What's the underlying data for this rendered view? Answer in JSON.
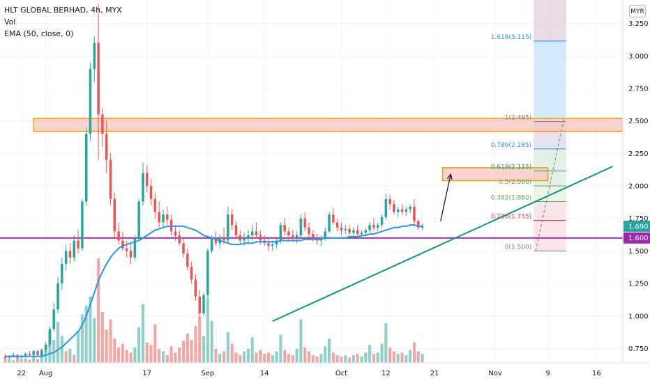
{
  "legend": {
    "title": "HLT GLOBAL BERHAD, 4h, MYX",
    "vol": "Vol",
    "ema": "EMA (50, close, 0)"
  },
  "currency": "MYR",
  "colors": {
    "up": "#26a69a",
    "down": "#ef5350",
    "vol_up": "#8fd0c9",
    "vol_down": "#f3a6a4",
    "ema": "#2196f3",
    "support": "#9c27b0",
    "trendline": "#089981",
    "zone_fill": "#f8c4c2",
    "zone_border": "#f59d00"
  },
  "chart_data": {
    "type": "candlestick",
    "ylim": [
      0.64,
      3.43
    ],
    "y_ticks": [
      "3.250",
      "3.000",
      "2.750",
      "2.500",
      "2.250",
      "2.000",
      "1.750",
      "1.500",
      "1.250",
      "1.000",
      "0.750"
    ],
    "x_ticks": [
      {
        "label": "22",
        "i": 4
      },
      {
        "label": "Aug",
        "i": 10
      },
      {
        "label": "17",
        "i": 35
      },
      {
        "label": "Sep",
        "i": 50
      },
      {
        "label": "14",
        "i": 64
      },
      {
        "label": "Oct",
        "i": 83
      },
      {
        "label": "12",
        "i": 94
      },
      {
        "label": "21",
        "i": 106
      },
      {
        "label": "Nov",
        "i": 121
      },
      {
        "label": "9",
        "i": 134
      },
      {
        "label": "16",
        "i": 146
      }
    ],
    "x_range": [
      -1.3,
      152.5
    ],
    "candles": [
      [
        0.69,
        0.71,
        0.67,
        0.68
      ],
      [
        0.68,
        0.7,
        0.67,
        0.69
      ],
      [
        0.69,
        0.72,
        0.68,
        0.7
      ],
      [
        0.7,
        0.71,
        0.67,
        0.68
      ],
      [
        0.68,
        0.7,
        0.67,
        0.69
      ],
      [
        0.69,
        0.72,
        0.68,
        0.71
      ],
      [
        0.71,
        0.73,
        0.69,
        0.7
      ],
      [
        0.7,
        0.74,
        0.69,
        0.73
      ],
      [
        0.73,
        0.74,
        0.69,
        0.7
      ],
      [
        0.7,
        0.75,
        0.69,
        0.74
      ],
      [
        0.74,
        0.8,
        0.72,
        0.78
      ],
      [
        0.78,
        0.92,
        0.76,
        0.9
      ],
      [
        0.9,
        1.1,
        0.88,
        1.05
      ],
      [
        1.05,
        1.3,
        1.02,
        1.25
      ],
      [
        1.25,
        1.45,
        1.2,
        1.4
      ],
      [
        1.4,
        1.55,
        1.35,
        1.5
      ],
      [
        1.5,
        1.56,
        1.4,
        1.45
      ],
      [
        1.45,
        1.62,
        1.42,
        1.58
      ],
      [
        1.58,
        1.66,
        1.48,
        1.52
      ],
      [
        1.52,
        1.9,
        1.5,
        1.88
      ],
      [
        1.88,
        2.45,
        1.85,
        2.4
      ],
      [
        2.4,
        2.95,
        2.35,
        2.9
      ],
      [
        2.9,
        3.15,
        2.8,
        3.1
      ],
      [
        3.1,
        3.4,
        2.2,
        2.55
      ],
      [
        2.55,
        2.6,
        2.3,
        2.4
      ],
      [
        2.4,
        2.5,
        2.1,
        2.2
      ],
      [
        2.2,
        2.25,
        1.85,
        1.9
      ],
      [
        1.9,
        1.95,
        1.6,
        1.65
      ],
      [
        1.65,
        1.72,
        1.55,
        1.58
      ],
      [
        1.58,
        1.65,
        1.5,
        1.52
      ],
      [
        1.52,
        1.58,
        1.45,
        1.5
      ],
      [
        1.5,
        1.56,
        1.4,
        1.45
      ],
      [
        1.45,
        1.62,
        1.43,
        1.6
      ],
      [
        1.6,
        1.9,
        1.58,
        1.88
      ],
      [
        1.88,
        2.18,
        1.85,
        2.1
      ],
      [
        2.1,
        2.16,
        1.95,
        2.0
      ],
      [
        2.0,
        2.05,
        1.85,
        1.9
      ],
      [
        1.9,
        1.95,
        1.75,
        1.8
      ],
      [
        1.8,
        1.88,
        1.68,
        1.72
      ],
      [
        1.72,
        1.82,
        1.68,
        1.78
      ],
      [
        1.78,
        1.84,
        1.7,
        1.74
      ],
      [
        1.74,
        1.78,
        1.62,
        1.65
      ],
      [
        1.65,
        1.7,
        1.58,
        1.62
      ],
      [
        1.62,
        1.66,
        1.54,
        1.56
      ],
      [
        1.56,
        1.6,
        1.45,
        1.48
      ],
      [
        1.48,
        1.52,
        1.35,
        1.38
      ],
      [
        1.38,
        1.42,
        1.25,
        1.28
      ],
      [
        1.28,
        1.32,
        1.12,
        1.15
      ],
      [
        1.15,
        1.2,
        0.98,
        1.02
      ],
      [
        1.02,
        1.18,
        1.0,
        1.16
      ],
      [
        1.16,
        1.52,
        1.14,
        1.5
      ],
      [
        1.5,
        1.62,
        1.48,
        1.6
      ],
      [
        1.6,
        1.65,
        1.54,
        1.56
      ],
      [
        1.56,
        1.63,
        1.52,
        1.6
      ],
      [
        1.6,
        1.68,
        1.55,
        1.58
      ],
      [
        1.58,
        1.84,
        1.56,
        1.78
      ],
      [
        1.78,
        1.82,
        1.66,
        1.7
      ],
      [
        1.7,
        1.73,
        1.6,
        1.62
      ],
      [
        1.62,
        1.66,
        1.55,
        1.58
      ],
      [
        1.58,
        1.64,
        1.54,
        1.6
      ],
      [
        1.6,
        1.66,
        1.56,
        1.62
      ],
      [
        1.62,
        1.7,
        1.58,
        1.65
      ],
      [
        1.65,
        1.72,
        1.6,
        1.62
      ],
      [
        1.62,
        1.66,
        1.55,
        1.58
      ],
      [
        1.58,
        1.62,
        1.54,
        1.56
      ],
      [
        1.56,
        1.6,
        1.5,
        1.54
      ],
      [
        1.54,
        1.58,
        1.5,
        1.55
      ],
      [
        1.55,
        1.6,
        1.52,
        1.58
      ],
      [
        1.58,
        1.72,
        1.56,
        1.7
      ],
      [
        1.7,
        1.75,
        1.62,
        1.65
      ],
      [
        1.65,
        1.68,
        1.58,
        1.62
      ],
      [
        1.62,
        1.66,
        1.57,
        1.6
      ],
      [
        1.6,
        1.65,
        1.56,
        1.62
      ],
      [
        1.62,
        1.78,
        1.6,
        1.75
      ],
      [
        1.75,
        1.8,
        1.65,
        1.68
      ],
      [
        1.68,
        1.72,
        1.6,
        1.63
      ],
      [
        1.63,
        1.66,
        1.57,
        1.6
      ],
      [
        1.6,
        1.63,
        1.55,
        1.58
      ],
      [
        1.58,
        1.62,
        1.54,
        1.6
      ],
      [
        1.6,
        1.68,
        1.58,
        1.65
      ],
      [
        1.65,
        1.8,
        1.64,
        1.78
      ],
      [
        1.78,
        1.83,
        1.7,
        1.72
      ],
      [
        1.72,
        1.75,
        1.65,
        1.68
      ],
      [
        1.68,
        1.72,
        1.62,
        1.66
      ],
      [
        1.66,
        1.7,
        1.63,
        1.67
      ],
      [
        1.67,
        1.7,
        1.62,
        1.64
      ],
      [
        1.64,
        1.68,
        1.6,
        1.66
      ],
      [
        1.66,
        1.7,
        1.62,
        1.63
      ],
      [
        1.63,
        1.66,
        1.6,
        1.64
      ],
      [
        1.64,
        1.68,
        1.62,
        1.66
      ],
      [
        1.66,
        1.72,
        1.64,
        1.7
      ],
      [
        1.7,
        1.75,
        1.66,
        1.68
      ],
      [
        1.68,
        1.72,
        1.65,
        1.7
      ],
      [
        1.7,
        1.78,
        1.68,
        1.76
      ],
      [
        1.76,
        1.94,
        1.74,
        1.9
      ],
      [
        1.9,
        1.93,
        1.82,
        1.86
      ],
      [
        1.86,
        1.89,
        1.78,
        1.8
      ],
      [
        1.8,
        1.84,
        1.76,
        1.82
      ],
      [
        1.82,
        1.86,
        1.78,
        1.8
      ],
      [
        1.8,
        1.84,
        1.77,
        1.82
      ],
      [
        1.82,
        1.86,
        1.79,
        1.84
      ],
      [
        1.84,
        1.9,
        1.7,
        1.73
      ],
      [
        1.73,
        1.74,
        1.66,
        1.68
      ],
      [
        1.68,
        1.71,
        1.66,
        1.69
      ]
    ],
    "volume": [
      [
        0.5,
        0
      ],
      [
        0.3,
        1
      ],
      [
        0.2,
        0
      ],
      [
        0.4,
        1
      ],
      [
        0.3,
        0
      ],
      [
        0.35,
        1
      ],
      [
        0.25,
        0
      ],
      [
        0.5,
        1
      ],
      [
        0.3,
        0
      ],
      [
        0.7,
        1
      ],
      [
        1.2,
        1
      ],
      [
        2.5,
        1
      ],
      [
        1.8,
        1
      ],
      [
        3.2,
        1
      ],
      [
        2.1,
        1
      ],
      [
        0.9,
        0
      ],
      [
        1.1,
        1
      ],
      [
        0.6,
        0
      ],
      [
        2.4,
        1
      ],
      [
        3.8,
        1
      ],
      [
        4.5,
        1
      ],
      [
        5.2,
        1
      ],
      [
        3.5,
        1
      ],
      [
        8.2,
        0
      ],
      [
        4.0,
        0
      ],
      [
        2.6,
        0
      ],
      [
        3.4,
        0
      ],
      [
        1.9,
        0
      ],
      [
        1.2,
        0
      ],
      [
        1.5,
        0
      ],
      [
        1.0,
        0
      ],
      [
        0.8,
        0
      ],
      [
        1.2,
        1
      ],
      [
        2.8,
        1
      ],
      [
        4.6,
        1
      ],
      [
        1.6,
        0
      ],
      [
        1.4,
        0
      ],
      [
        3.0,
        0
      ],
      [
        1.1,
        0
      ],
      [
        0.9,
        1
      ],
      [
        0.6,
        0
      ],
      [
        1.3,
        0
      ],
      [
        0.8,
        0
      ],
      [
        1.2,
        0
      ],
      [
        1.7,
        0
      ],
      [
        2.3,
        0
      ],
      [
        1.8,
        0
      ],
      [
        2.9,
        0
      ],
      [
        3.6,
        0
      ],
      [
        2.1,
        1
      ],
      [
        5.1,
        1
      ],
      [
        3.3,
        1
      ],
      [
        1.1,
        0
      ],
      [
        0.7,
        1
      ],
      [
        0.9,
        0
      ],
      [
        2.4,
        1
      ],
      [
        1.5,
        0
      ],
      [
        0.8,
        0
      ],
      [
        0.6,
        0
      ],
      [
        0.9,
        1
      ],
      [
        1.1,
        1
      ],
      [
        2.0,
        1
      ],
      [
        0.8,
        0
      ],
      [
        1.0,
        0
      ],
      [
        0.7,
        0
      ],
      [
        0.8,
        0
      ],
      [
        0.6,
        1
      ],
      [
        0.9,
        1
      ],
      [
        2.2,
        1
      ],
      [
        1.0,
        0
      ],
      [
        0.7,
        0
      ],
      [
        0.6,
        0
      ],
      [
        1.1,
        1
      ],
      [
        3.4,
        1
      ],
      [
        1.2,
        0
      ],
      [
        0.9,
        0
      ],
      [
        0.6,
        0
      ],
      [
        0.5,
        0
      ],
      [
        0.7,
        1
      ],
      [
        1.3,
        1
      ],
      [
        1.9,
        1
      ],
      [
        0.8,
        0
      ],
      [
        0.6,
        0
      ],
      [
        0.5,
        0
      ],
      [
        0.6,
        1
      ],
      [
        0.4,
        0
      ],
      [
        0.6,
        1
      ],
      [
        0.7,
        0
      ],
      [
        0.5,
        1
      ],
      [
        0.8,
        1
      ],
      [
        1.4,
        1
      ],
      [
        0.7,
        0
      ],
      [
        0.8,
        1
      ],
      [
        1.5,
        1
      ],
      [
        3.1,
        1
      ],
      [
        1.2,
        0
      ],
      [
        0.9,
        0
      ],
      [
        0.7,
        1
      ],
      [
        0.8,
        0
      ],
      [
        0.6,
        1
      ],
      [
        1.0,
        1
      ],
      [
        1.6,
        0
      ],
      [
        0.9,
        0
      ],
      [
        0.7,
        1
      ]
    ],
    "ema": [
      0.69,
      0.69,
      0.69,
      0.69,
      0.69,
      0.69,
      0.69,
      0.69,
      0.69,
      0.69,
      0.7,
      0.71,
      0.72,
      0.74,
      0.76,
      0.79,
      0.82,
      0.85,
      0.88,
      0.93,
      1.0,
      1.09,
      1.18,
      1.27,
      1.34,
      1.4,
      1.45,
      1.49,
      1.52,
      1.54,
      1.55,
      1.56,
      1.57,
      1.58,
      1.6,
      1.62,
      1.64,
      1.66,
      1.67,
      1.68,
      1.69,
      1.69,
      1.69,
      1.69,
      1.69,
      1.68,
      1.67,
      1.66,
      1.64,
      1.62,
      1.61,
      1.6,
      1.59,
      1.58,
      1.57,
      1.56,
      1.55,
      1.55,
      1.55,
      1.56,
      1.56,
      1.56,
      1.57,
      1.57,
      1.57,
      1.57,
      1.57,
      1.57,
      1.58,
      1.58,
      1.58,
      1.58,
      1.58,
      1.58,
      1.59,
      1.59,
      1.59,
      1.59,
      1.59,
      1.6,
      1.6,
      1.6,
      1.6,
      1.6,
      1.6,
      1.61,
      1.61,
      1.61,
      1.62,
      1.62,
      1.63,
      1.63,
      1.64,
      1.65,
      1.66,
      1.67,
      1.68,
      1.68,
      1.69,
      1.69,
      1.7,
      1.7,
      1.69,
      1.69
    ],
    "support_level": 1.6,
    "last_price": 1.69,
    "price_labels": [
      "1.690",
      "1.600"
    ],
    "zones": [
      {
        "x0": 7,
        "x1": 152.5,
        "y0": 2.42,
        "y1": 2.52
      },
      {
        "x0": 108,
        "x1": 134,
        "y0": 2.04,
        "y1": 2.14
      }
    ],
    "trendline": {
      "x0": 66,
      "y0": 0.96,
      "x1": 150,
      "y1": 2.15
    },
    "arrow": {
      "x0": 107.5,
      "y0": 1.73,
      "x1": 110,
      "y1": 2.09
    },
    "long_position": {
      "x0": 130.5,
      "x1": 138.5,
      "entry": 2.52,
      "target": 3.43,
      "stop": 1.5
    },
    "dashed_projection": {
      "x0": 131,
      "y0": 1.5,
      "x1": 138,
      "y1": 2.52
    },
    "fib_levels": [
      {
        "label": "1.618(3.115)",
        "value": 3.115,
        "color": "#2196f3"
      },
      {
        "label": "1(2.495)",
        "value": 2.495,
        "color": "#787b86"
      },
      {
        "label": "0.786(2.285)",
        "value": 2.285,
        "color": "#2196f3"
      },
      {
        "label": "0.618(2.115)",
        "value": 2.115,
        "color": "#089981"
      },
      {
        "label": "0.5(2.000)",
        "value": 2.0,
        "color": "#4caf50"
      },
      {
        "label": "0.382(1.880)",
        "value": 1.88,
        "color": "#4caf50"
      },
      {
        "label": "0.236(1.735)",
        "value": 1.735,
        "color": "#f23645"
      },
      {
        "label": "0(1.500)",
        "value": 1.5,
        "color": "#787b86"
      }
    ]
  }
}
